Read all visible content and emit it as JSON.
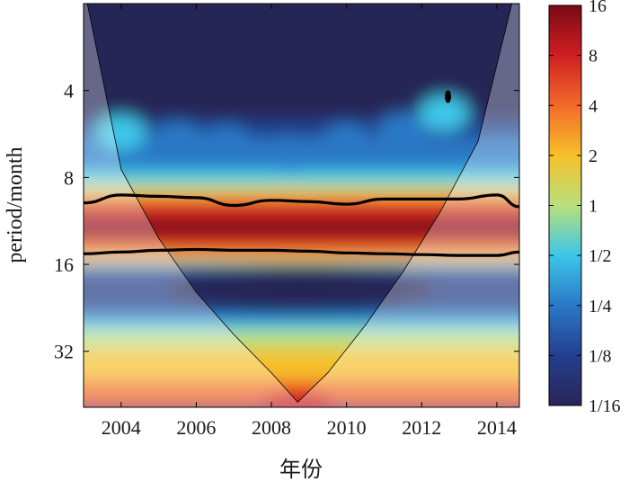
{
  "chart_data": {
    "type": "heatmap",
    "subtype": "wavelet power spectrum",
    "xlabel": "年份",
    "ylabel": "period/month",
    "x_ticks": [
      2004,
      2006,
      2008,
      2010,
      2012,
      2014
    ],
    "xlim": [
      2003.0,
      2014.6
    ],
    "y_ticks": [
      4,
      8,
      16,
      32
    ],
    "ylim": [
      2,
      50
    ],
    "y_scale": "log2",
    "y_direction": "reversed",
    "colorbar": {
      "ticks": [
        "16",
        "8",
        "4",
        "2",
        "1",
        "1/2",
        "1/4",
        "1/8",
        "1/16"
      ],
      "values": [
        16,
        8,
        4,
        2,
        1,
        0.5,
        0.25,
        0.125,
        0.0625
      ],
      "scale": "log2",
      "colors": [
        "#7a0a14",
        "#cf1f22",
        "#f36a2a",
        "#f6c02a",
        "#b8e07c",
        "#3cc6e8",
        "#2a78c6",
        "#243f8e",
        "#282556"
      ]
    },
    "significant_band_period": [
      9.5,
      15.5
    ],
    "peak_period": 12,
    "series": [
      {
        "x": [
          2003.0,
          2004.0,
          2005.0,
          2006.0,
          2007.0,
          2008.0,
          2009.0,
          2010.0,
          2011.0,
          2012.0,
          2013.0,
          2014.0,
          2014.6
        ],
        "y": [
          9.8,
          9.2,
          9.3,
          9.4,
          10.0,
          9.6,
          9.7,
          9.9,
          9.5,
          9.5,
          9.5,
          9.2,
          10.1
        ]
      },
      {
        "x": [
          2003.0,
          2004.0,
          2005.0,
          2006.0,
          2007.0,
          2008.0,
          2009.0,
          2010.0,
          2011.0,
          2012.0,
          2013.0,
          2014.0,
          2014.6
        ],
        "y": [
          14.7,
          14.5,
          14.3,
          14.2,
          14.3,
          14.3,
          14.4,
          14.6,
          14.7,
          14.8,
          14.9,
          14.9,
          14.5
        ]
      }
    ],
    "cone_of_influence": {
      "x": [
        2003.1,
        2004.0,
        2005.0,
        2006.0,
        2007.0,
        2008.0,
        2008.7,
        2009.5,
        2010.5,
        2011.5,
        2012.5,
        2013.5,
        2014.4
      ],
      "y": [
        2,
        7.5,
        13,
        20,
        28,
        38,
        48,
        38,
        26,
        17,
        10.5,
        6,
        2
      ]
    },
    "extra_contour": {
      "x": 2012.7,
      "y": 4.2
    }
  }
}
